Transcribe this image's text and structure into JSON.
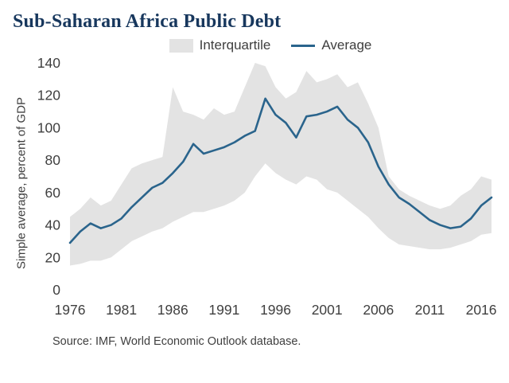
{
  "title": "Sub-Saharan Africa Public Debt",
  "legend": {
    "band": "Interquartile",
    "line": "Average"
  },
  "y_axis_label": "Simple average, percent of GDP",
  "source": "Source: IMF, World Economic Outlook database.",
  "colors": {
    "band": "#e3e3e3",
    "line": "#2a648c",
    "title": "#17375d",
    "axis_text": "#3f3f3f"
  },
  "chart_data": {
    "type": "line",
    "title": "Sub-Saharan Africa Public Debt",
    "xlabel": "",
    "ylabel": "Simple average, percent of GDP",
    "ylim": [
      0,
      140
    ],
    "yticks": [
      0,
      20,
      40,
      60,
      80,
      100,
      120,
      140
    ],
    "xticks": [
      1976,
      1981,
      1986,
      1991,
      1996,
      2001,
      2006,
      2011,
      2016
    ],
    "grid": false,
    "legend_position": "top",
    "x": [
      1976,
      1977,
      1978,
      1979,
      1980,
      1981,
      1982,
      1983,
      1984,
      1985,
      1986,
      1987,
      1988,
      1989,
      1990,
      1991,
      1992,
      1993,
      1994,
      1995,
      1996,
      1997,
      1998,
      1999,
      2000,
      2001,
      2002,
      2003,
      2004,
      2005,
      2006,
      2007,
      2008,
      2009,
      2010,
      2011,
      2012,
      2013,
      2014,
      2015,
      2016,
      2017
    ],
    "series": [
      {
        "name": "Average",
        "values": [
          29,
          36,
          41,
          38,
          40,
          44,
          51,
          57,
          63,
          66,
          72,
          79,
          90,
          84,
          86,
          88,
          91,
          95,
          98,
          118,
          108,
          103,
          94,
          107,
          108,
          110,
          113,
          105,
          100,
          91,
          76,
          65,
          57,
          53,
          48,
          43,
          40,
          38,
          39,
          44,
          52,
          57
        ]
      }
    ],
    "band": {
      "name": "Interquartile",
      "upper": [
        45,
        50,
        57,
        52,
        55,
        65,
        75,
        78,
        80,
        82,
        125,
        110,
        108,
        105,
        112,
        108,
        110,
        125,
        140,
        138,
        125,
        118,
        122,
        135,
        128,
        130,
        133,
        125,
        128,
        115,
        100,
        70,
        62,
        58,
        55,
        52,
        50,
        52,
        58,
        62,
        70,
        68
      ],
      "lower": [
        15,
        16,
        18,
        18,
        20,
        25,
        30,
        33,
        36,
        38,
        42,
        45,
        48,
        48,
        50,
        52,
        55,
        60,
        70,
        78,
        72,
        68,
        65,
        70,
        68,
        62,
        60,
        55,
        50,
        45,
        38,
        32,
        28,
        27,
        26,
        25,
        25,
        26,
        28,
        30,
        34,
        35
      ]
    }
  }
}
